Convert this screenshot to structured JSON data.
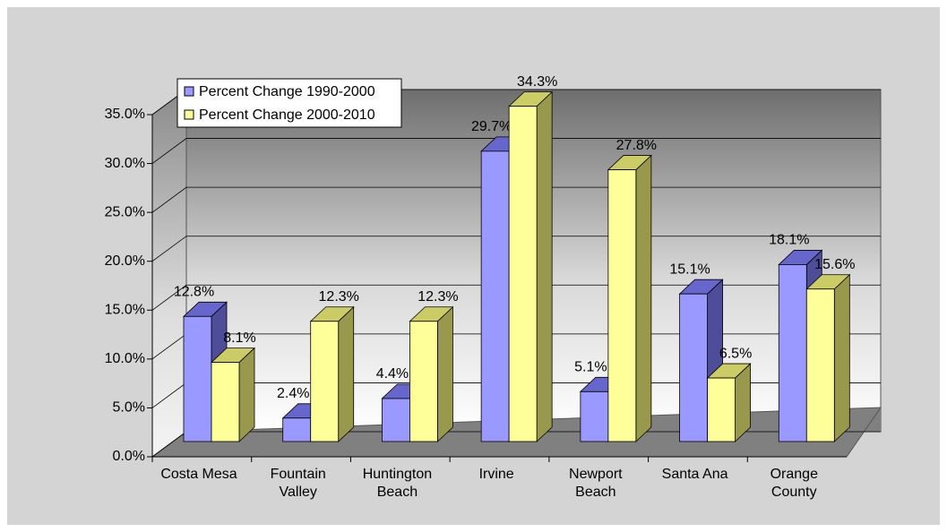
{
  "chart_data": {
    "type": "bar3d",
    "categories": [
      "Costa Mesa",
      "Fountain Valley",
      "Huntington Beach",
      "Irvine",
      "Newport Beach",
      "Santa Ana",
      "Orange County"
    ],
    "series": [
      {
        "name": "Percent Change 1990-2000",
        "color": "#9999ff",
        "values": [
          12.8,
          2.4,
          4.4,
          29.7,
          5.1,
          15.1,
          18.1
        ],
        "value_labels": [
          "12.8%",
          "2.4%",
          "4.4%",
          "29.7%",
          "5.1%",
          "15.1%",
          "18.1%"
        ]
      },
      {
        "name": "Percent Change 2000-2010",
        "color": "#ffff99",
        "values": [
          8.1,
          12.3,
          12.3,
          34.3,
          27.8,
          6.5,
          15.6
        ],
        "value_labels": [
          "8.1%",
          "12.3%",
          "12.3%",
          "34.3%",
          "27.8%",
          "6.5%",
          "15.6%"
        ]
      }
    ],
    "ylim": [
      0,
      35
    ],
    "yticks": [
      {
        "value": 0,
        "label": "0.0%"
      },
      {
        "value": 5,
        "label": "5.0%"
      },
      {
        "value": 10,
        "label": "10.0%"
      },
      {
        "value": 15,
        "label": "15.0%"
      },
      {
        "value": 20,
        "label": "20.0%"
      },
      {
        "value": 25,
        "label": "25.0%"
      },
      {
        "value": 30,
        "label": "30.0%"
      },
      {
        "value": 35,
        "label": "35.0%"
      }
    ],
    "grid": true,
    "legend": "top-left"
  }
}
